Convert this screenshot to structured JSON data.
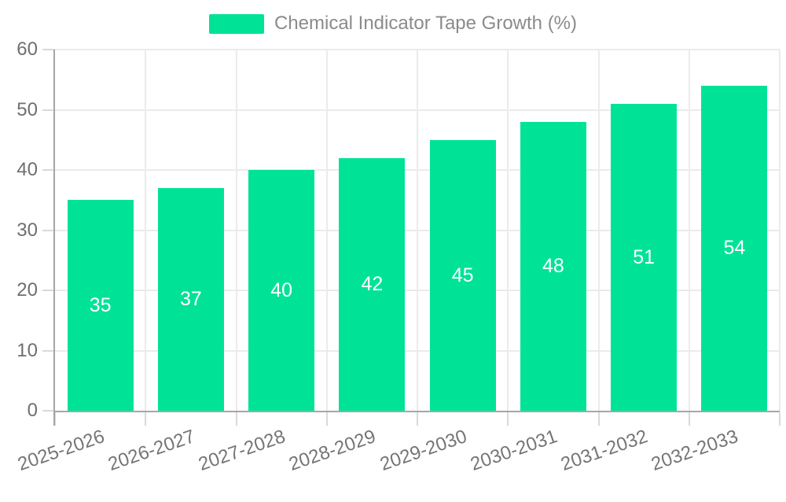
{
  "legend": {
    "label": "Chemical Indicator Tape Growth (%)"
  },
  "chart_data": {
    "type": "bar",
    "title": "Chemical Indicator Tape Growth (%)",
    "categories": [
      "2025-2026",
      "2026-2027",
      "2027-2028",
      "2028-2029",
      "2029-2030",
      "2030-2031",
      "2031-2032",
      "2032-2033"
    ],
    "values": [
      35,
      37,
      40,
      42,
      45,
      48,
      51,
      54
    ],
    "xlabel": "",
    "ylabel": "",
    "ylim": [
      0,
      60
    ],
    "yticks": [
      0,
      10,
      20,
      30,
      40,
      50,
      60
    ],
    "grid": true,
    "legend_position": "top",
    "bar_color": "#00e396",
    "value_label_color": "#ffffff"
  },
  "colors": {
    "bar": "#00e396",
    "grid": "#ebebeb",
    "axis": "#a6a6a6",
    "tick": "#d9d9d9",
    "axis_label": "#6f6f6f",
    "legend_text": "#8b8b8b",
    "background": "#ffffff"
  }
}
